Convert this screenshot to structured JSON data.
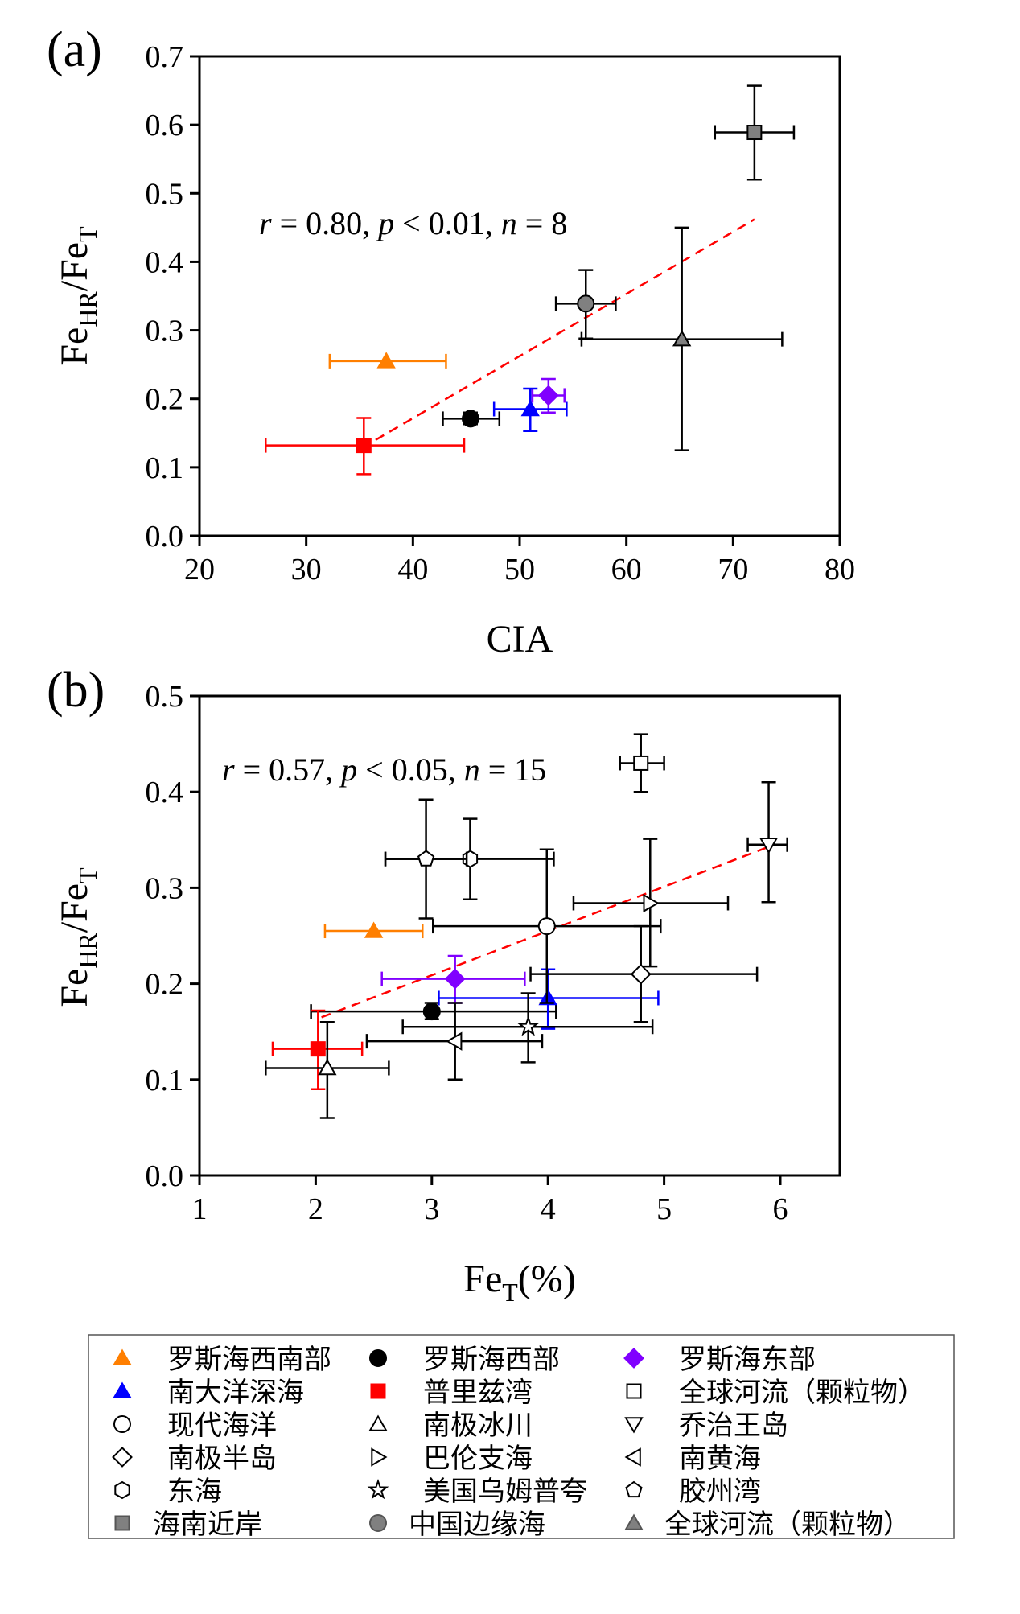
{
  "chart_data": [
    {
      "type": "scatter",
      "panel_label": "(a)",
      "xlabel": "CIA",
      "ylabel": {
        "main1": "Fe",
        "sub1": "HR",
        "main2": "/Fe",
        "sub2": "T"
      },
      "xlim": [
        20,
        80
      ],
      "ylim": [
        0,
        0.7
      ],
      "xticks": [
        "20",
        "30",
        "40",
        "50",
        "60",
        "70",
        "80"
      ],
      "yticks": [
        "0.0",
        "0.1",
        "0.2",
        "0.3",
        "0.4",
        "0.5",
        "0.6",
        "0.7"
      ],
      "annotation": {
        "r": "r",
        "t1": " = 0.80, ",
        "p": "p",
        "t2": " < 0.01, ",
        "n": "n",
        "t3": " = 8"
      },
      "trendline": {
        "x": [
          36.5,
          72
        ],
        "y": [
          0.14,
          0.462
        ],
        "color": "#ff0000",
        "style": "dashed"
      },
      "series": [
        {
          "name": "罗斯海西南部",
          "marker": "triangle-up",
          "color": "#ff7f00",
          "fill": "#ff7f00",
          "x": 37.5,
          "y": 0.255,
          "xerr": [
            32.2,
            43.1
          ],
          "yerr": null
        },
        {
          "name": "罗斯海西部",
          "marker": "circle",
          "color": "#000000",
          "fill": "#000000",
          "x": 45.4,
          "y": 0.171,
          "xerr": [
            42.8,
            48.1
          ],
          "yerr": [
            0.163,
            0.18
          ]
        },
        {
          "name": "罗斯海东部",
          "marker": "diamond",
          "color": "#8000ff",
          "fill": "#8000ff",
          "x": 52.7,
          "y": 0.205,
          "xerr": [
            51.2,
            54.2
          ],
          "yerr": [
            0.18,
            0.229
          ]
        },
        {
          "name": "南大洋深海",
          "marker": "triangle-up",
          "color": "#0000ff",
          "fill": "#0000ff",
          "x": 51.0,
          "y": 0.185,
          "xerr": [
            47.6,
            54.4
          ],
          "yerr": [
            0.153,
            0.215
          ]
        },
        {
          "name": "普里兹湾",
          "marker": "square",
          "color": "#ff0000",
          "fill": "#ff0000",
          "x": 35.4,
          "y": 0.132,
          "xerr": [
            26.2,
            44.8
          ],
          "yerr": [
            0.09,
            0.172
          ]
        },
        {
          "name": "海南近岸",
          "marker": "square",
          "color": "#000000",
          "fill": "#808080",
          "x": 72.0,
          "y": 0.589,
          "xerr": [
            68.3,
            75.7
          ],
          "yerr": [
            0.52,
            0.657
          ]
        },
        {
          "name": "中国边缘海",
          "marker": "circle",
          "color": "#000000",
          "fill": "#808080",
          "x": 56.2,
          "y": 0.339,
          "xerr": [
            53.4,
            59.0
          ],
          "yerr": [
            0.288,
            0.388
          ]
        },
        {
          "name": "全球河流（颗粒物）",
          "marker": "triangle-up",
          "color": "#000000",
          "fill": "#808080",
          "x": 65.2,
          "y": 0.287,
          "xerr": [
            55.8,
            74.6
          ],
          "yerr": [
            0.125,
            0.45
          ]
        }
      ]
    },
    {
      "type": "scatter",
      "panel_label": "(b)",
      "xlabel": {
        "main": "Fe",
        "sub": "T",
        "unit": "(%)"
      },
      "ylabel": {
        "main1": "Fe",
        "sub1": "HR",
        "main2": "/Fe",
        "sub2": "T"
      },
      "xlim": [
        1,
        6.5
      ],
      "ylim": [
        0,
        0.5
      ],
      "xticks": [
        "1",
        "2",
        "3",
        "4",
        "5",
        "6"
      ],
      "yticks": [
        "0.0",
        "0.1",
        "0.2",
        "0.3",
        "0.4",
        "0.5"
      ],
      "annotation": {
        "r": "r",
        "t1": " = 0.57, ",
        "p": "p",
        "t2": " < 0.05, ",
        "n": "n",
        "t3": " = 15"
      },
      "trendline": {
        "x": [
          2.05,
          5.95
        ],
        "y": [
          0.165,
          0.345
        ],
        "color": "#ff0000",
        "style": "dashed"
      },
      "series": [
        {
          "name": "罗斯海西南部",
          "marker": "triangle-up",
          "color": "#ff7f00",
          "fill": "#ff7f00",
          "x": 2.5,
          "y": 0.255,
          "xerr": [
            2.08,
            2.92
          ],
          "yerr": null
        },
        {
          "name": "罗斯海西部",
          "marker": "circle",
          "color": "#000000",
          "fill": "#000000",
          "x": 3.0,
          "y": 0.171,
          "xerr": [
            1.96,
            4.07
          ],
          "yerr": [
            0.163,
            0.18
          ]
        },
        {
          "name": "罗斯海东部",
          "marker": "diamond",
          "color": "#8000ff",
          "fill": "#8000ff",
          "x": 3.2,
          "y": 0.205,
          "xerr": [
            2.57,
            3.8
          ],
          "yerr": [
            0.18,
            0.229
          ]
        },
        {
          "name": "南大洋深海",
          "marker": "triangle-up",
          "color": "#0000ff",
          "fill": "#0000ff",
          "x": 4.0,
          "y": 0.185,
          "xerr": [
            3.06,
            4.95
          ],
          "yerr": [
            0.153,
            0.215
          ]
        },
        {
          "name": "普里兹湾",
          "marker": "square",
          "color": "#ff0000",
          "fill": "#ff0000",
          "x": 2.02,
          "y": 0.132,
          "xerr": [
            1.63,
            2.4
          ],
          "yerr": [
            0.09,
            0.172
          ]
        },
        {
          "name": "全球河流（颗粒物）",
          "marker": "square",
          "color": "#000000",
          "fill": "#ffffff",
          "x": 4.8,
          "y": 0.43,
          "xerr": [
            4.62,
            5.0
          ],
          "yerr": [
            0.4,
            0.46
          ]
        },
        {
          "name": "现代海洋",
          "marker": "circle",
          "color": "#000000",
          "fill": "#ffffff",
          "x": 3.99,
          "y": 0.26,
          "xerr": [
            3.01,
            4.97
          ],
          "yerr": [
            0.18,
            0.34
          ]
        },
        {
          "name": "南极冰川",
          "marker": "triangle-up",
          "color": "#000000",
          "fill": "#ffffff",
          "x": 2.1,
          "y": 0.112,
          "xerr": [
            1.57,
            2.63
          ],
          "yerr": [
            0.06,
            0.16
          ]
        },
        {
          "name": "乔治王岛",
          "marker": "triangle-down",
          "color": "#000000",
          "fill": "#ffffff",
          "x": 5.9,
          "y": 0.345,
          "xerr": [
            5.72,
            6.06
          ],
          "yerr": [
            0.285,
            0.41
          ]
        },
        {
          "name": "南极半岛",
          "marker": "diamond",
          "color": "#000000",
          "fill": "#ffffff",
          "x": 4.8,
          "y": 0.21,
          "xerr": [
            3.85,
            5.8
          ],
          "yerr": [
            0.16,
            0.26
          ]
        },
        {
          "name": "巴伦支海",
          "marker": "triangle-right",
          "color": "#000000",
          "fill": "#ffffff",
          "x": 4.88,
          "y": 0.284,
          "xerr": [
            4.22,
            5.55
          ],
          "yerr": [
            0.218,
            0.351
          ]
        },
        {
          "name": "南黄海",
          "marker": "triangle-left",
          "color": "#000000",
          "fill": "#ffffff",
          "x": 3.2,
          "y": 0.14,
          "xerr": [
            2.44,
            3.95
          ],
          "yerr": [
            0.1,
            0.18
          ]
        },
        {
          "name": "美国乌姆普夸",
          "marker": "star",
          "color": "#000000",
          "fill": "#ffffff",
          "x": 3.83,
          "y": 0.155,
          "xerr": [
            2.75,
            4.9
          ],
          "yerr": [
            0.118,
            0.19
          ]
        },
        {
          "name": "东海",
          "marker": "hexagon",
          "color": "#000000",
          "fill": "#ffffff",
          "x": 3.33,
          "y": 0.33,
          "xerr": [
            2.6,
            4.05
          ],
          "yerr": [
            0.288,
            0.372
          ]
        },
        {
          "name": "胶州湾",
          "marker": "pentagon",
          "color": "#000000",
          "fill": "#ffffff",
          "x": 2.95,
          "y": 0.33,
          "xerr": [
            2.6,
            3.3
          ],
          "yerr": [
            0.268,
            0.392
          ]
        }
      ]
    }
  ],
  "legend": [
    {
      "label": "罗斯海西南部",
      "marker": "triangle-up",
      "color": "#ff7f00",
      "fill": "#ff7f00"
    },
    {
      "label": "罗斯海西部",
      "marker": "circle",
      "color": "#000000",
      "fill": "#000000"
    },
    {
      "label": "罗斯海东部",
      "marker": "diamond",
      "color": "#8000ff",
      "fill": "#8000ff"
    },
    {
      "label": "南大洋深海",
      "marker": "triangle-up",
      "color": "#0000ff",
      "fill": "#0000ff"
    },
    {
      "label": "普里兹湾",
      "marker": "square",
      "color": "#ff0000",
      "fill": "#ff0000"
    },
    {
      "label": "全球河流（颗粒物）",
      "marker": "square",
      "color": "#000000",
      "fill": "#ffffff"
    },
    {
      "label": "现代海洋",
      "marker": "circle",
      "color": "#000000",
      "fill": "#ffffff"
    },
    {
      "label": "南极冰川",
      "marker": "triangle-up",
      "color": "#000000",
      "fill": "#ffffff"
    },
    {
      "label": "乔治王岛",
      "marker": "triangle-down",
      "color": "#000000",
      "fill": "#ffffff"
    },
    {
      "label": "南极半岛",
      "marker": "diamond",
      "color": "#000000",
      "fill": "#ffffff"
    },
    {
      "label": "巴伦支海",
      "marker": "triangle-right",
      "color": "#000000",
      "fill": "#ffffff"
    },
    {
      "label": "南黄海",
      "marker": "triangle-left",
      "color": "#000000",
      "fill": "#ffffff"
    },
    {
      "label": "东海",
      "marker": "hexagon",
      "color": "#000000",
      "fill": "#ffffff"
    },
    {
      "label": "美国乌姆普夸",
      "marker": "star",
      "color": "#000000",
      "fill": "#ffffff"
    },
    {
      "label": "胶州湾",
      "marker": "pentagon",
      "color": "#000000",
      "fill": "#ffffff"
    },
    {
      "label": "海南近岸",
      "marker": "square",
      "color": "#555555",
      "fill": "#808080"
    },
    {
      "label": "中国边缘海",
      "marker": "circle",
      "color": "#555555",
      "fill": "#808080"
    },
    {
      "label": "全球河流（颗粒物）",
      "marker": "triangle-up",
      "color": "#555555",
      "fill": "#808080"
    }
  ]
}
